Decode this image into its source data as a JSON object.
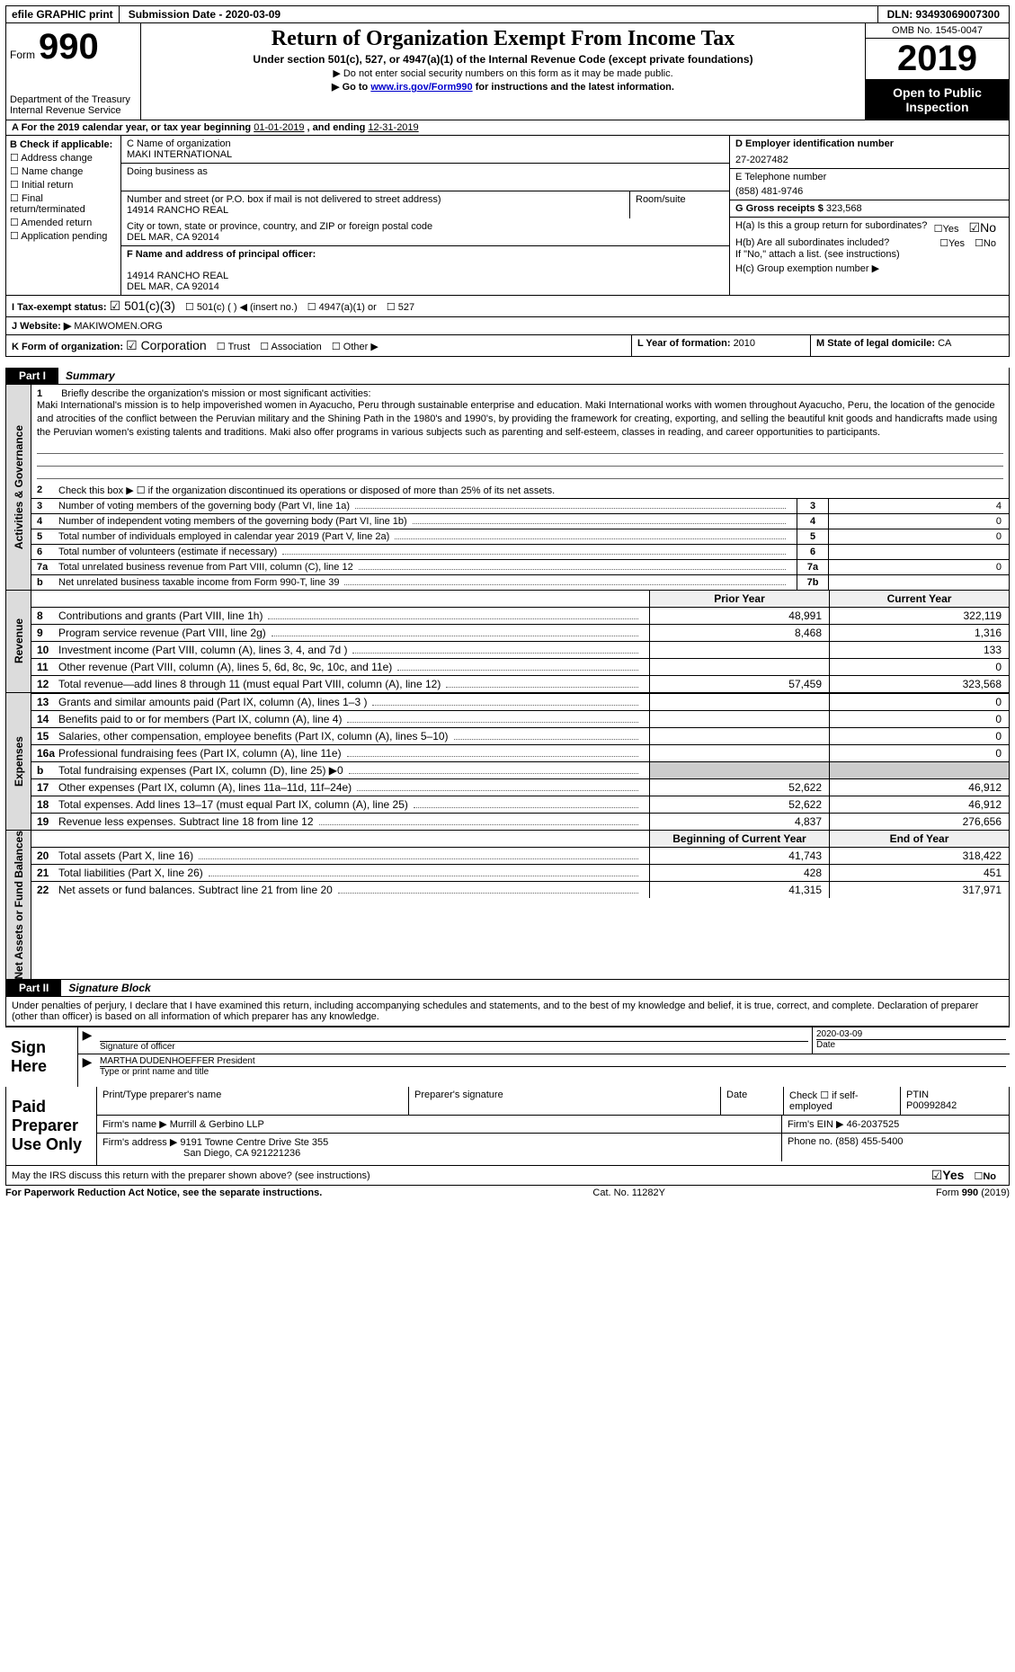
{
  "colors": {
    "black": "#000000",
    "white": "#ffffff",
    "grey_side": "#dcdcdc",
    "grey_cell": "#cccccc",
    "link": "#0000cc"
  },
  "topbar": {
    "efile": "efile GRAPHIC print",
    "submission": "Submission Date - 2020-03-09",
    "dln": "DLN: 93493069007300"
  },
  "header": {
    "form_word": "Form",
    "form_number": "990",
    "title": "Return of Organization Exempt From Income Tax",
    "subtitle": "Under section 501(c), 527, or 4947(a)(1) of the Internal Revenue Code (except private foundations)",
    "warn1": "▶ Do not enter social security numbers on this form as it may be made public.",
    "warn2_pre": "▶ Go to ",
    "warn2_link": "www.irs.gov/Form990",
    "warn2_post": " for instructions and the latest information.",
    "dept1": "Department of the Treasury",
    "dept2": "Internal Revenue Service",
    "omb": "OMB No. 1545-0047",
    "year": "2019",
    "open": "Open to Public Inspection"
  },
  "period": {
    "a_prefix": "A   For the 2019 calendar year, or tax year beginning ",
    "a_begin": "01-01-2019",
    "a_mid": "    , and ending ",
    "a_end": "12-31-2019"
  },
  "section_b": {
    "label": "B Check if applicable:",
    "opts": [
      "Address change",
      "Name change",
      "Initial return",
      "Final return/terminated",
      "Amended return",
      "Application pending"
    ]
  },
  "section_c": {
    "c_label": "C Name of organization",
    "org_name": "MAKI INTERNATIONAL",
    "dba_label": "Doing business as",
    "addr_label": "Number and street (or P.O. box if mail is not delivered to street address)",
    "addr": "14914 RANCHO REAL",
    "room_label": "Room/suite",
    "city_label": "City or town, state or province, country, and ZIP or foreign postal code",
    "city": "DEL MAR, CA   92014",
    "f_label": "F  Name and address of principal officer:",
    "f_addr1": "14914 RANCHO REAL",
    "f_addr2": "DEL MAR, CA   92014"
  },
  "section_d": {
    "d_label": "D Employer identification number",
    "d_val": "27-2027482",
    "e_label": "E Telephone number",
    "e_val": "(858) 481-9746",
    "g_label": "G Gross receipts $ ",
    "g_val": "323,568"
  },
  "section_h": {
    "ha_label": "H(a)  Is this a group return for subordinates?",
    "hb_label": "H(b)  Are all subordinates included?",
    "hb_note": "If \"No,\" attach a list. (see instructions)",
    "hc_label": "H(c)  Group exemption number ▶"
  },
  "row_i": {
    "label": "I   Tax-exempt status:",
    "opts": [
      "501(c)(3)",
      "501(c) (  ) ◀ (insert no.)",
      "4947(a)(1) or",
      "527"
    ]
  },
  "row_j": {
    "label": "J  Website: ▶ ",
    "val": "MAKIWOMEN.ORG"
  },
  "row_k": {
    "label": "K Form of organization:",
    "opts": [
      "Corporation",
      "Trust",
      "Association",
      "Other ▶"
    ]
  },
  "row_l": {
    "label": "L Year of formation: ",
    "val": "2010"
  },
  "row_m": {
    "label": "M State of legal domicile: ",
    "val": "CA"
  },
  "parts": {
    "p1_tab": "Part I",
    "p1_title": "Summary",
    "p2_tab": "Part II",
    "p2_title": "Signature Block"
  },
  "sides": {
    "activities": "Activities & Governance",
    "revenue": "Revenue",
    "expenses": "Expenses",
    "net": "Net Assets or Fund Balances"
  },
  "mission": {
    "q": "Briefly describe the organization's mission or most significant activities:",
    "text": "Maki International's mission is to help impoverished women in Ayacucho, Peru through sustainable enterprise and education. Maki International works with women throughout Ayacucho, Peru, the location of the genocide and atrocities of the conflict between the Peruvian military and the Shining Path in the 1980's and 1990's, by providing the framework for creating, exporting, and selling the beautiful knit goods and handicrafts made using the Peruvian women's existing talents and traditions. Maki also offer programs in various subjects such as parenting and self-esteem, classes in reading, and career opportunities to participants."
  },
  "activities_rows": [
    {
      "n": "2",
      "desc": "Check this box ▶ ☐ if the organization discontinued its operations or disposed of more than 25% of its net assets.",
      "cell": "",
      "val": ""
    },
    {
      "n": "3",
      "desc": "Number of voting members of the governing body (Part VI, line 1a)",
      "cell": "3",
      "val": "4"
    },
    {
      "n": "4",
      "desc": "Number of independent voting members of the governing body (Part VI, line 1b)",
      "cell": "4",
      "val": "0"
    },
    {
      "n": "5",
      "desc": "Total number of individuals employed in calendar year 2019 (Part V, line 2a)",
      "cell": "5",
      "val": "0"
    },
    {
      "n": "6",
      "desc": "Total number of volunteers (estimate if necessary)",
      "cell": "6",
      "val": ""
    },
    {
      "n": "7a",
      "desc": "Total unrelated business revenue from Part VIII, column (C), line 12",
      "cell": "7a",
      "val": "0"
    },
    {
      "n": "b",
      "desc": "Net unrelated business taxable income from Form 990-T, line 39",
      "cell": "7b",
      "val": ""
    }
  ],
  "col_headers": {
    "prior": "Prior Year",
    "curr": "Current Year",
    "boy": "Beginning of Current Year",
    "eoy": "End of Year"
  },
  "revenue_rows": [
    {
      "n": "8",
      "desc": "Contributions and grants (Part VIII, line 1h)",
      "prior": "48,991",
      "curr": "322,119"
    },
    {
      "n": "9",
      "desc": "Program service revenue (Part VIII, line 2g)",
      "prior": "8,468",
      "curr": "1,316"
    },
    {
      "n": "10",
      "desc": "Investment income (Part VIII, column (A), lines 3, 4, and 7d )",
      "prior": "",
      "curr": "133"
    },
    {
      "n": "11",
      "desc": "Other revenue (Part VIII, column (A), lines 5, 6d, 8c, 9c, 10c, and 11e)",
      "prior": "",
      "curr": "0"
    },
    {
      "n": "12",
      "desc": "Total revenue—add lines 8 through 11 (must equal Part VIII, column (A), line 12)",
      "prior": "57,459",
      "curr": "323,568"
    }
  ],
  "expense_rows": [
    {
      "n": "13",
      "desc": "Grants and similar amounts paid (Part IX, column (A), lines 1–3 )",
      "prior": "",
      "curr": "0"
    },
    {
      "n": "14",
      "desc": "Benefits paid to or for members (Part IX, column (A), line 4)",
      "prior": "",
      "curr": "0"
    },
    {
      "n": "15",
      "desc": "Salaries, other compensation, employee benefits (Part IX, column (A), lines 5–10)",
      "prior": "",
      "curr": "0"
    },
    {
      "n": "16a",
      "desc": "Professional fundraising fees (Part IX, column (A), line 11e)",
      "prior": "",
      "curr": "0"
    },
    {
      "n": "b",
      "desc": "Total fundraising expenses (Part IX, column (D), line 25) ▶0",
      "prior": "grey",
      "curr": "grey"
    },
    {
      "n": "17",
      "desc": "Other expenses (Part IX, column (A), lines 11a–11d, 11f–24e)",
      "prior": "52,622",
      "curr": "46,912"
    },
    {
      "n": "18",
      "desc": "Total expenses. Add lines 13–17 (must equal Part IX, column (A), line 25)",
      "prior": "52,622",
      "curr": "46,912"
    },
    {
      "n": "19",
      "desc": "Revenue less expenses. Subtract line 18 from line 12",
      "prior": "4,837",
      "curr": "276,656"
    }
  ],
  "net_rows": [
    {
      "n": "20",
      "desc": "Total assets (Part X, line 16)",
      "prior": "41,743",
      "curr": "318,422"
    },
    {
      "n": "21",
      "desc": "Total liabilities (Part X, line 26)",
      "prior": "428",
      "curr": "451"
    },
    {
      "n": "22",
      "desc": "Net assets or fund balances. Subtract line 21 from line 20",
      "prior": "41,315",
      "curr": "317,971"
    }
  ],
  "sig": {
    "penalties": "Under penalties of perjury, I declare that I have examined this return, including accompanying schedules and statements, and to the best of my knowledge and belief, it is true, correct, and complete. Declaration of preparer (other than officer) is based on all information of which preparer has any knowledge.",
    "sign_here": "Sign Here",
    "sig_officer": "Signature of officer",
    "date_label": "Date",
    "sig_date": "2020-03-09",
    "name_title": "MARTHA DUDENHOEFFER  President",
    "type_label": "Type or print name and title"
  },
  "paid": {
    "label": "Paid Preparer Use Only",
    "prep_name_label": "Print/Type preparer's name",
    "prep_sig_label": "Preparer's signature",
    "date_label": "Date",
    "check_label": "Check ☐ if self-employed",
    "ptin_label": "PTIN",
    "ptin": "P00992842",
    "firm_name_label": "Firm's name    ▶ ",
    "firm_name": "Murrill & Gerbino LLP",
    "firm_ein_label": "Firm's EIN ▶ ",
    "firm_ein": "46-2037525",
    "firm_addr_label": "Firm's address ▶ ",
    "firm_addr1": "9191 Towne Centre Drive Ste 355",
    "firm_addr2": "San Diego, CA  921221236",
    "phone_label": "Phone no. ",
    "phone": "(858) 455-5400"
  },
  "discuss": {
    "text": "May the IRS discuss this return with the preparer shown above? (see instructions)",
    "yes": "Yes",
    "no": "No"
  },
  "footer": {
    "left": "For Paperwork Reduction Act Notice, see the separate instructions.",
    "center": "Cat. No. 11282Y",
    "right": "Form 990 (2019)"
  }
}
